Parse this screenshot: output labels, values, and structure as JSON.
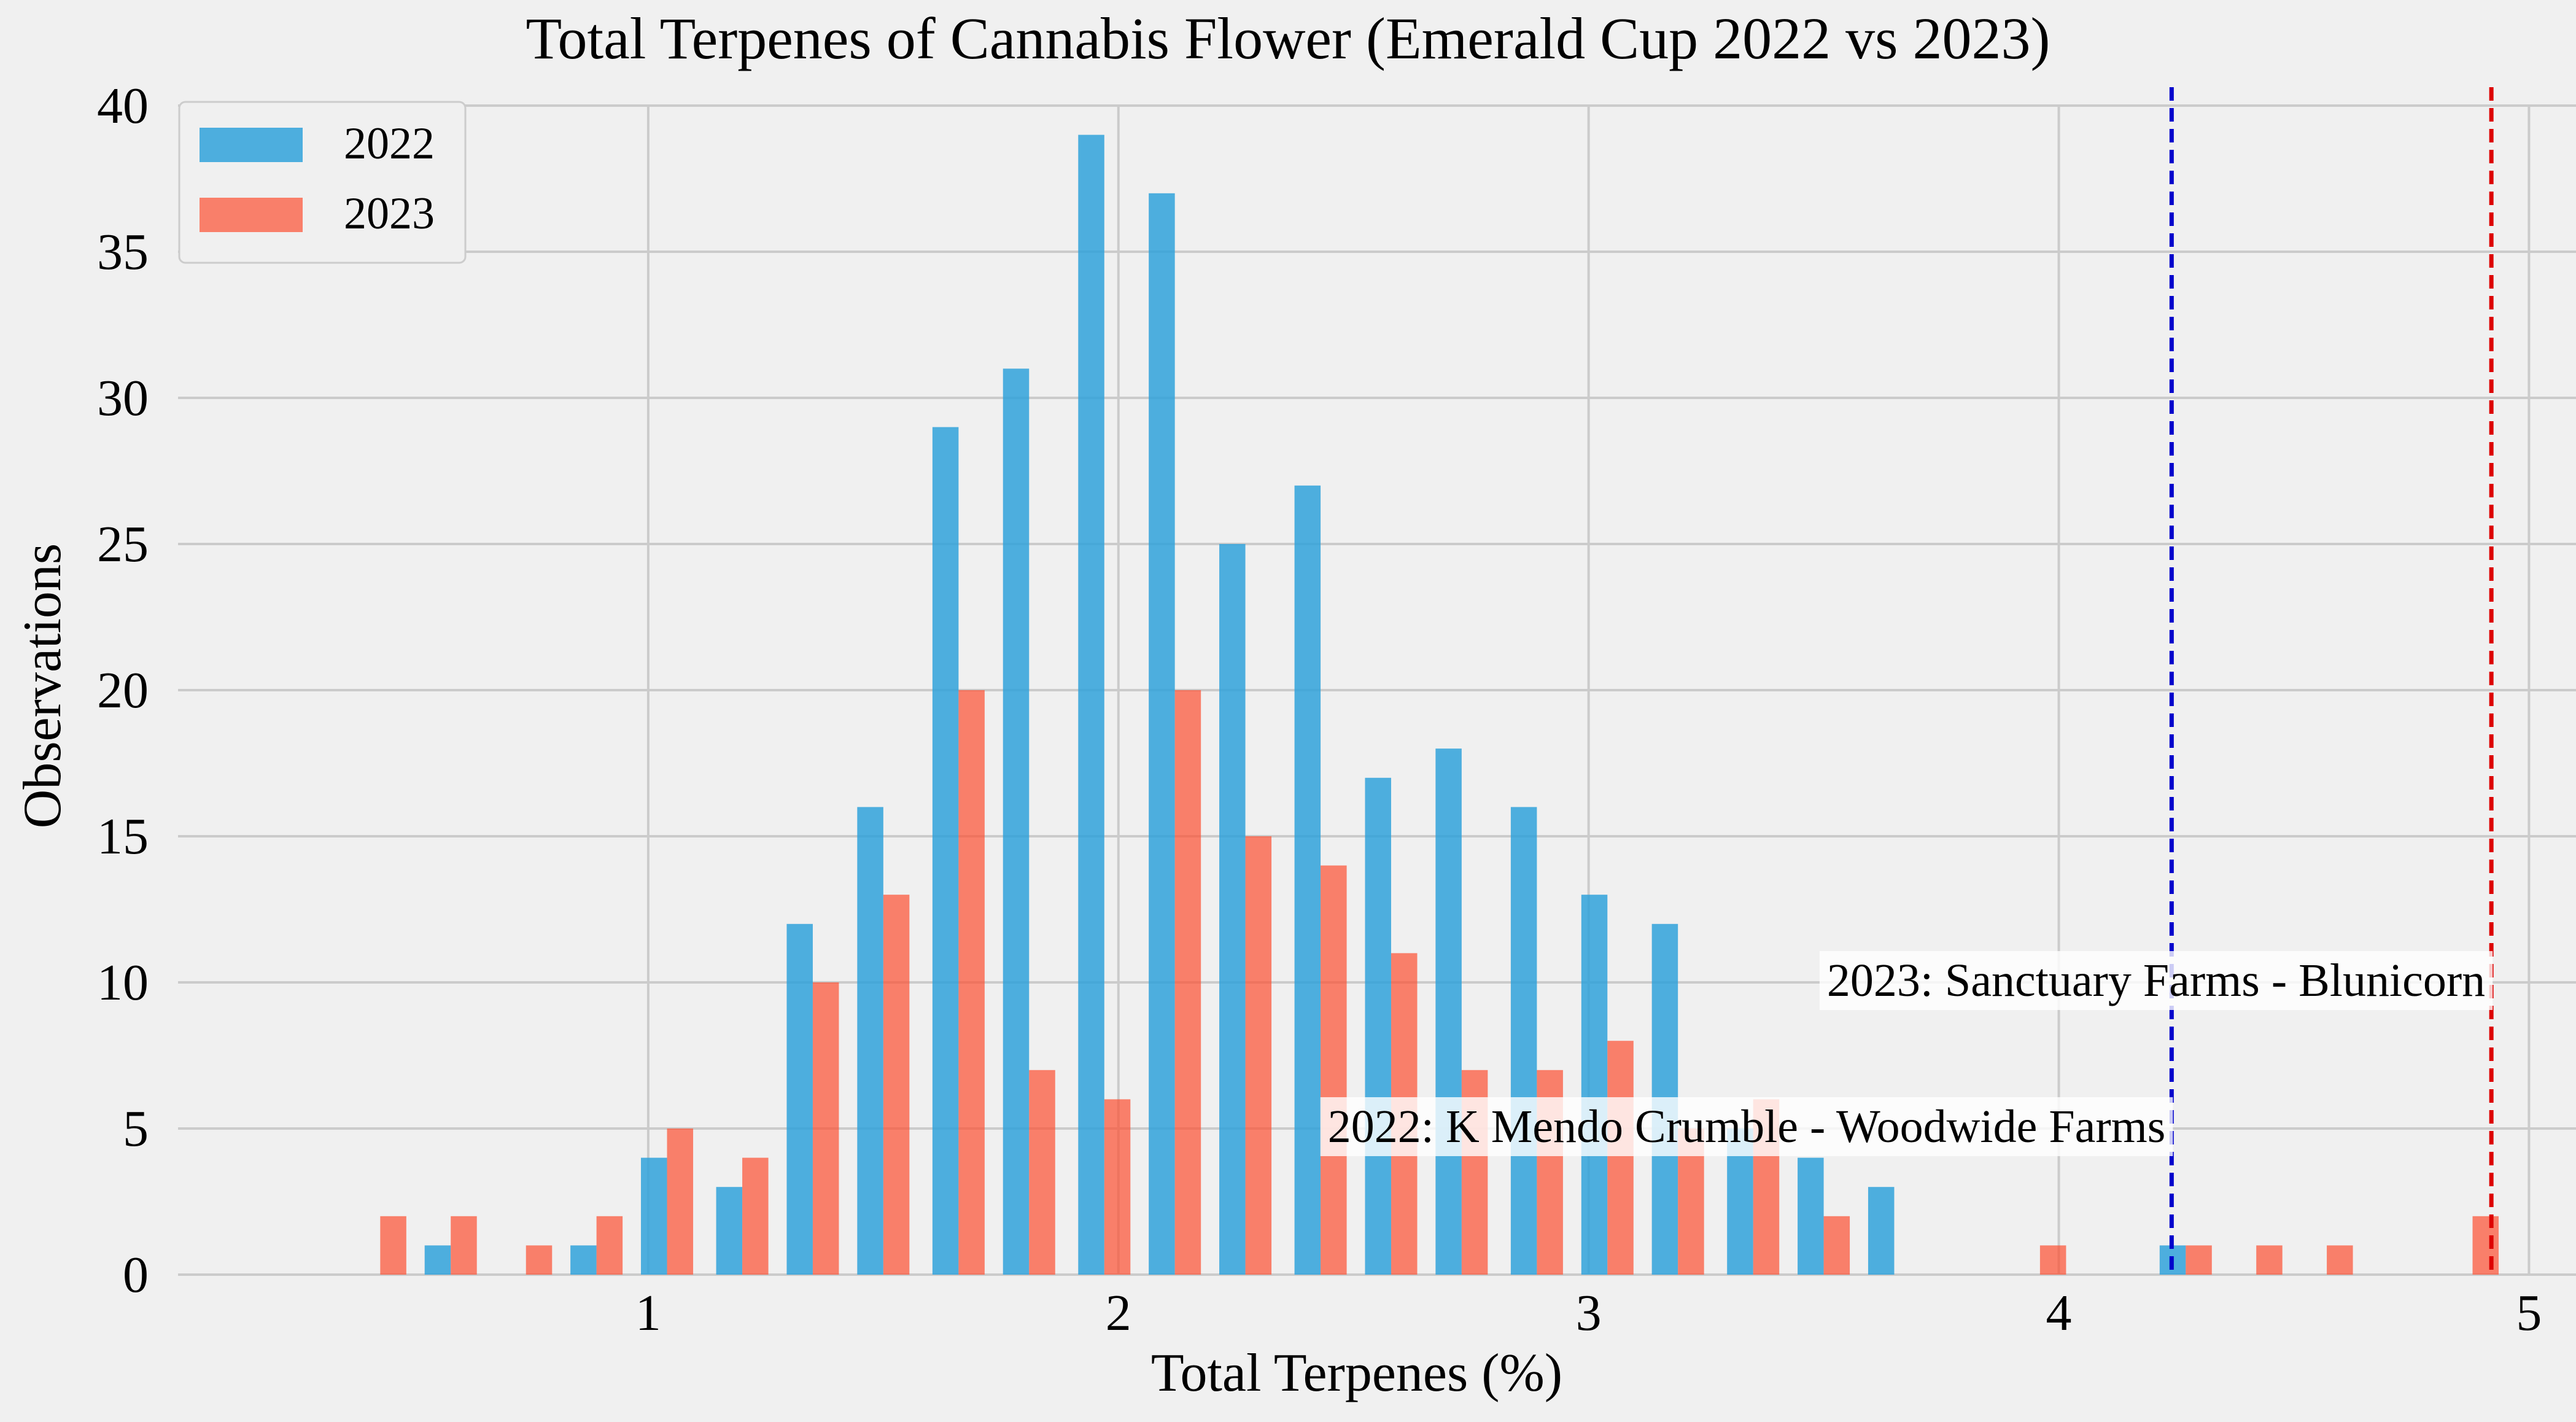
{
  "chart_data": {
    "type": "bar",
    "title": "Total Terpenes of Cannabis Flower (Emerald Cup 2022 vs 2023)",
    "xlabel": "Total Terpenes (%)",
    "ylabel": "Observations",
    "xlim": [
      0.0,
      5.1
    ],
    "ylim": [
      0,
      40
    ],
    "xticks": [
      1,
      2,
      3,
      4,
      5
    ],
    "yticks": [
      0,
      5,
      10,
      15,
      20,
      25,
      30,
      35,
      40
    ],
    "grid": true,
    "legend_position": "top-left",
    "bin_centers": [
      0.43,
      0.58,
      0.74,
      0.89,
      1.04,
      1.2,
      1.35,
      1.5,
      1.66,
      1.81,
      1.97,
      2.12,
      2.27,
      2.43,
      2.58,
      2.73,
      2.89,
      3.04,
      3.19,
      3.35,
      3.5,
      3.65,
      3.81,
      3.96,
      4.11,
      4.27,
      4.42,
      4.57,
      4.73,
      4.88
    ],
    "series": [
      {
        "name": "2022",
        "color": "#30a2da",
        "values": [
          0,
          1,
          0,
          1,
          4,
          3,
          12,
          16,
          29,
          31,
          39,
          37,
          25,
          27,
          17,
          18,
          16,
          13,
          12,
          5,
          4,
          3,
          0,
          0,
          0,
          1,
          0,
          0,
          0,
          0
        ]
      },
      {
        "name": "2023",
        "color": "#fc4f30",
        "values": [
          2,
          2,
          1,
          2,
          5,
          4,
          10,
          13,
          20,
          7,
          6,
          20,
          15,
          14,
          11,
          7,
          7,
          8,
          5,
          6,
          2,
          0,
          0,
          1,
          0,
          1,
          1,
          1,
          0,
          2
        ]
      }
    ],
    "reference_lines": [
      {
        "x": 4.24,
        "color": "#0000cc",
        "label": "2022: K Mendo Crumble - Woodwide Farms",
        "label_y": 5
      },
      {
        "x": 4.92,
        "color": "#dd0000",
        "label": "2023: Sanctuary Farms - Blunicorn",
        "label_y": 10
      }
    ]
  }
}
